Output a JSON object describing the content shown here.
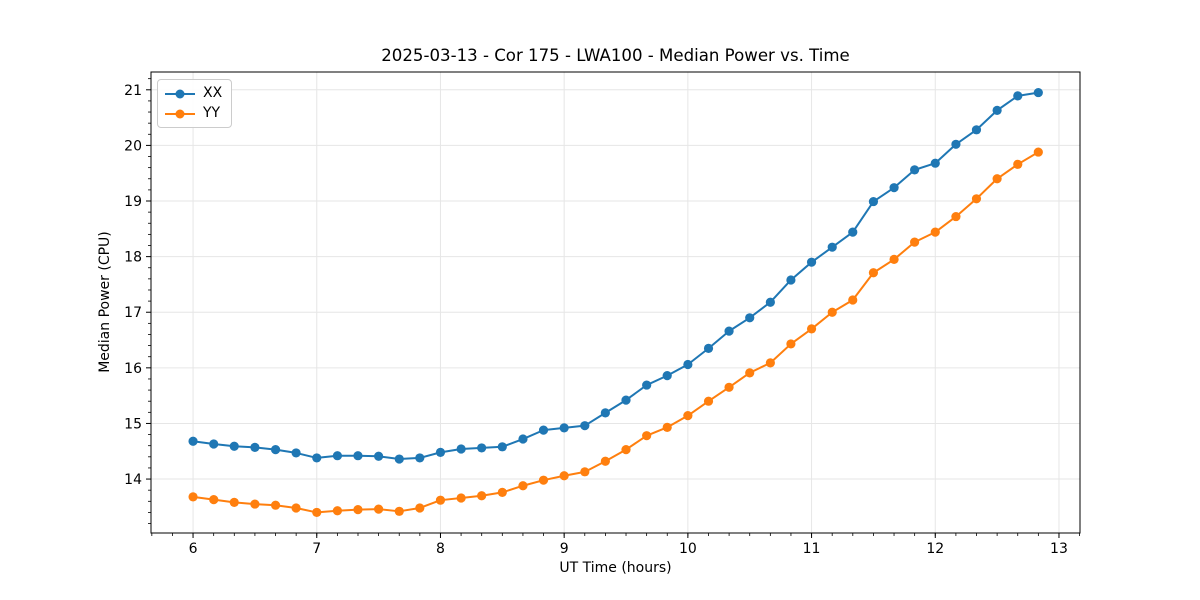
{
  "chart_data": {
    "type": "line",
    "title": "2025-03-13 - Cor 175 - LWA100 - Median Power vs. Time",
    "xlabel": "UT Time (hours)",
    "ylabel": "Median Power (CPU)",
    "xlim": [
      5.66,
      13.17
    ],
    "ylim": [
      13.03,
      21.32
    ],
    "x_ticks": [
      6,
      7,
      8,
      9,
      10,
      11,
      12,
      13
    ],
    "y_ticks": [
      14,
      15,
      16,
      17,
      18,
      19,
      20,
      21
    ],
    "x_minor_step": 0.166667,
    "y_minor_step": 0.2,
    "grid": true,
    "grid_color": "#e6e6e6",
    "legend_position": "upper-left",
    "x": [
      6.0,
      6.167,
      6.333,
      6.5,
      6.667,
      6.833,
      7.0,
      7.167,
      7.333,
      7.5,
      7.667,
      7.833,
      8.0,
      8.167,
      8.333,
      8.5,
      8.667,
      8.833,
      9.0,
      9.167,
      9.333,
      9.5,
      9.667,
      9.833,
      10.0,
      10.167,
      10.333,
      10.5,
      10.667,
      10.833,
      11.0,
      11.167,
      11.333,
      11.5,
      11.667,
      11.833,
      12.0,
      12.167,
      12.333,
      12.5,
      12.667,
      12.833
    ],
    "series": [
      {
        "name": "XX",
        "color": "#1f77b4",
        "values": [
          14.68,
          14.63,
          14.59,
          14.57,
          14.53,
          14.47,
          14.38,
          14.42,
          14.42,
          14.41,
          14.36,
          14.38,
          14.48,
          14.54,
          14.56,
          14.58,
          14.72,
          14.88,
          14.92,
          14.96,
          15.19,
          15.42,
          15.69,
          15.86,
          16.06,
          16.35,
          16.66,
          16.9,
          17.18,
          17.58,
          17.9,
          18.17,
          18.44,
          18.99,
          19.24,
          19.56,
          19.68,
          20.02,
          20.28,
          20.63,
          20.89,
          20.95
        ]
      },
      {
        "name": "YY",
        "color": "#ff7f0e",
        "values": [
          13.68,
          13.63,
          13.58,
          13.55,
          13.53,
          13.48,
          13.4,
          13.43,
          13.45,
          13.46,
          13.42,
          13.48,
          13.62,
          13.66,
          13.7,
          13.76,
          13.88,
          13.98,
          14.06,
          14.13,
          14.32,
          14.53,
          14.78,
          14.93,
          15.14,
          15.4,
          15.65,
          15.91,
          16.09,
          16.43,
          16.7,
          17.0,
          17.22,
          17.71,
          17.95,
          18.26,
          18.44,
          18.72,
          19.04,
          19.4,
          19.66,
          19.88
        ]
      }
    ]
  }
}
